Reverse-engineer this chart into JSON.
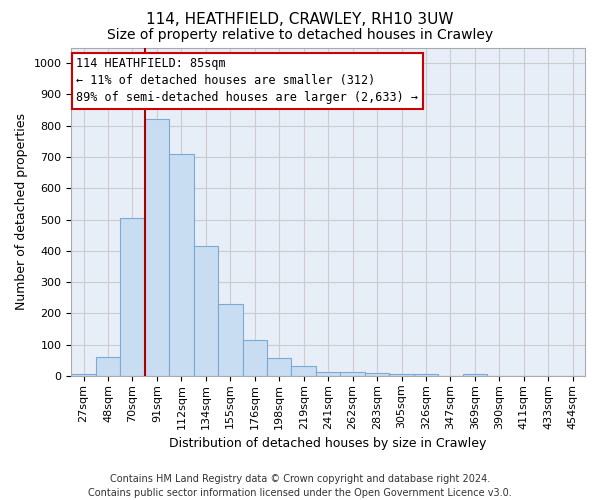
{
  "title": "114, HEATHFIELD, CRAWLEY, RH10 3UW",
  "subtitle": "Size of property relative to detached houses in Crawley",
  "xlabel": "Distribution of detached houses by size in Crawley",
  "ylabel": "Number of detached properties",
  "footer1": "Contains HM Land Registry data © Crown copyright and database right 2024.",
  "footer2": "Contains public sector information licensed under the Open Government Licence v3.0.",
  "categories": [
    "27sqm",
    "48sqm",
    "70sqm",
    "91sqm",
    "112sqm",
    "134sqm",
    "155sqm",
    "176sqm",
    "198sqm",
    "219sqm",
    "241sqm",
    "262sqm",
    "283sqm",
    "305sqm",
    "326sqm",
    "347sqm",
    "369sqm",
    "390sqm",
    "411sqm",
    "433sqm",
    "454sqm"
  ],
  "values": [
    5,
    60,
    505,
    820,
    710,
    415,
    230,
    115,
    57,
    32,
    14,
    12,
    10,
    8,
    5,
    0,
    7,
    0,
    0,
    0,
    0
  ],
  "bar_color": "#c9ddf2",
  "bar_edge_color": "#7aaad4",
  "vline_x": 3.0,
  "vline_color": "#aa0000",
  "annotation_line1": "114 HEATHFIELD: 85sqm",
  "annotation_line2": "← 11% of detached houses are smaller (312)",
  "annotation_line3": "89% of semi-detached houses are larger (2,633) →",
  "annotation_box_facecolor": "#ffffff",
  "annotation_box_edgecolor": "#cc0000",
  "ylim": [
    0,
    1050
  ],
  "yticks": [
    0,
    100,
    200,
    300,
    400,
    500,
    600,
    700,
    800,
    900,
    1000
  ],
  "grid_color": "#cccccc",
  "bg_color": "#e8eef8",
  "title_fontsize": 11,
  "subtitle_fontsize": 10,
  "ylabel_fontsize": 9,
  "xlabel_fontsize": 9,
  "tick_fontsize": 8,
  "annotation_fontsize": 8.5,
  "footer_fontsize": 7
}
